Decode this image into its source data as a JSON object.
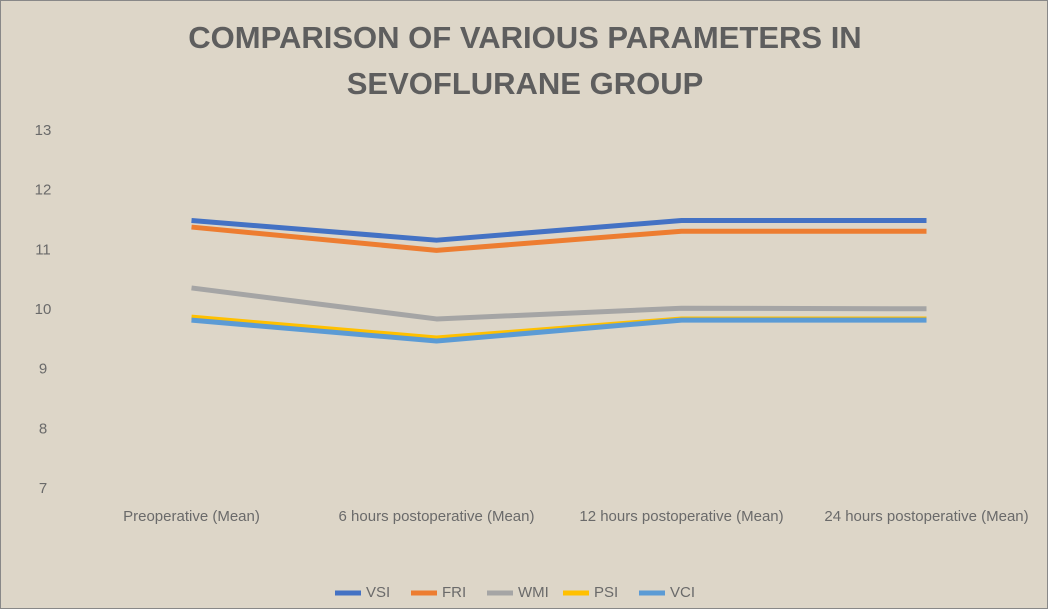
{
  "chart_data": {
    "type": "line",
    "title": "COMPARISON OF VARIOUS PARAMETERS IN SEVOFLURANE GROUP",
    "categories": [
      "Preoperative (Mean)",
      "6 hours postoperative (Mean)",
      "12 hours postoperative (Mean)",
      "24 hours postoperative (Mean)"
    ],
    "series": [
      {
        "name": "VSI",
        "color": "#4472c4",
        "values": [
          11.5,
          11.17,
          11.5,
          11.5
        ]
      },
      {
        "name": "FRI",
        "color": "#ed7d31",
        "values": [
          11.39,
          11.0,
          11.32,
          11.32
        ]
      },
      {
        "name": "WMI",
        "color": "#a5a5a5",
        "values": [
          10.37,
          9.85,
          10.03,
          10.02
        ]
      },
      {
        "name": "PSI",
        "color": "#ffc000",
        "values": [
          9.88,
          9.53,
          9.85,
          9.85
        ]
      },
      {
        "name": "VCI",
        "color": "#5b9bd5",
        "values": [
          9.83,
          9.48,
          9.83,
          9.83
        ]
      }
    ],
    "ylim": [
      7,
      13
    ],
    "yticks": [
      7,
      8,
      9,
      10,
      11,
      12,
      13
    ],
    "grid": false,
    "legend": "bottom"
  }
}
